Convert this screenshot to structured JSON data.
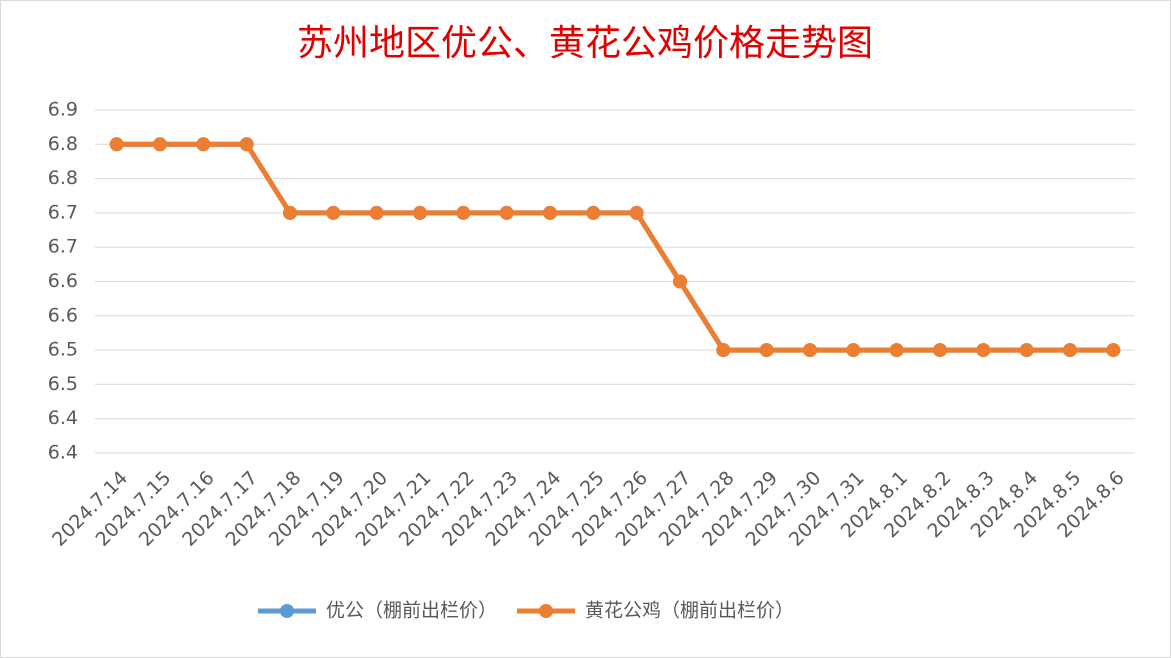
{
  "chart_data": {
    "type": "line",
    "title": "苏州地区优公、黄花公鸡价格走势图",
    "categories": [
      "2024.7.14",
      "2024.7.15",
      "2024.7.16",
      "2024.7.17",
      "2024.7.18",
      "2024.7.19",
      "2024.7.20",
      "2024.7.21",
      "2024.7.22",
      "2024.7.23",
      "2024.7.24",
      "2024.7.25",
      "2024.7.26",
      "2024.7.27",
      "2024.7.28",
      "2024.7.29",
      "2024.7.30",
      "2024.7.31",
      "2024.8.1",
      "2024.8.2",
      "2024.8.3",
      "2024.8.4",
      "2024.8.5",
      "2024.8.6"
    ],
    "series": [
      {
        "name": "优公（棚前出栏价）",
        "color": "#5b9bd5",
        "values": [
          6.8,
          6.8,
          6.8,
          6.8,
          6.7,
          6.7,
          6.7,
          6.7,
          6.7,
          6.7,
          6.7,
          6.7,
          6.7,
          6.6,
          6.5,
          6.5,
          6.5,
          6.5,
          6.5,
          6.5,
          6.5,
          6.5,
          6.5,
          6.5
        ]
      },
      {
        "name": "黄花公鸡（棚前出栏价）",
        "color": "#ed7d31",
        "values": [
          6.8,
          6.8,
          6.8,
          6.8,
          6.7,
          6.7,
          6.7,
          6.7,
          6.7,
          6.7,
          6.7,
          6.7,
          6.7,
          6.6,
          6.5,
          6.5,
          6.5,
          6.5,
          6.5,
          6.5,
          6.5,
          6.5,
          6.5,
          6.5
        ]
      }
    ],
    "ylim": [
      6.35,
      6.85
    ],
    "yticks": [
      {
        "value": 6.35,
        "label": "6.4"
      },
      {
        "value": 6.4,
        "label": "6.4"
      },
      {
        "value": 6.45,
        "label": "6.5"
      },
      {
        "value": 6.5,
        "label": "6.5"
      },
      {
        "value": 6.55,
        "label": "6.6"
      },
      {
        "value": 6.6,
        "label": "6.6"
      },
      {
        "value": 6.65,
        "label": "6.7"
      },
      {
        "value": 6.7,
        "label": "6.7"
      },
      {
        "value": 6.75,
        "label": "6.8"
      },
      {
        "value": 6.8,
        "label": "6.8"
      },
      {
        "value": 6.85,
        "label": "6.9"
      }
    ],
    "grid": true,
    "legend": "bottom"
  }
}
